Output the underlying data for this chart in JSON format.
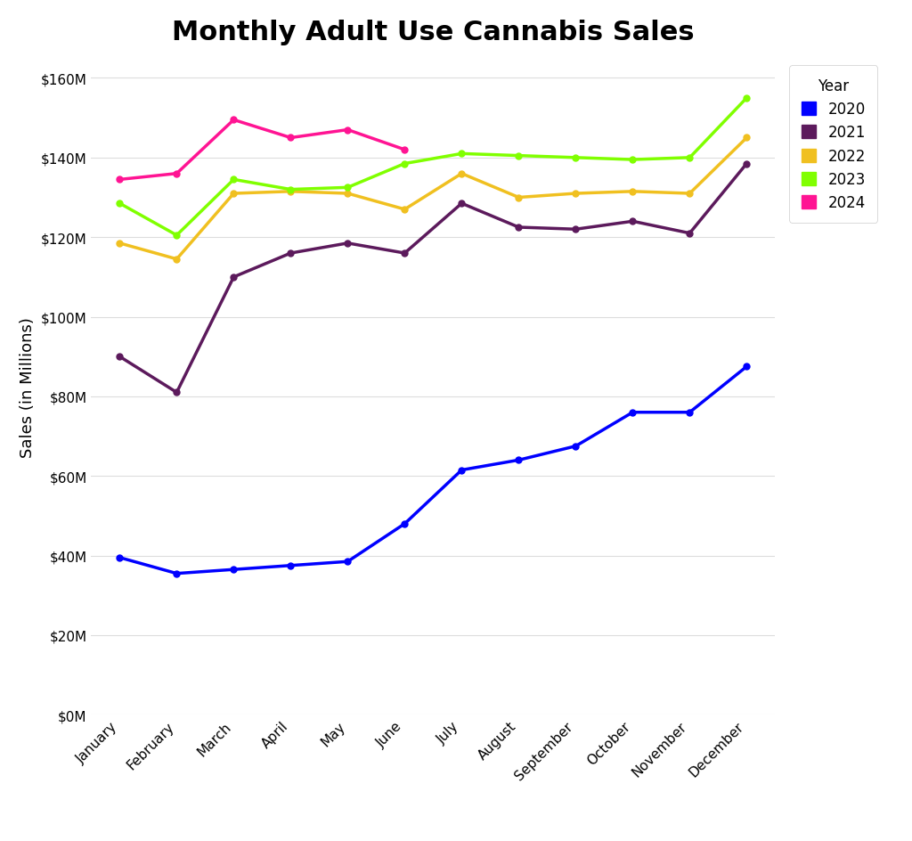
{
  "title": "Monthly Adult Use Cannabis Sales",
  "ylabel": "Sales (in Millions)",
  "months": [
    "January",
    "February",
    "March",
    "April",
    "May",
    "June",
    "July",
    "August",
    "September",
    "October",
    "November",
    "December"
  ],
  "series": {
    "2020": {
      "color": "#0000ff",
      "values": [
        39.5,
        35.5,
        36.5,
        37.5,
        38.5,
        48.0,
        61.5,
        64.0,
        67.5,
        76.0,
        76.0,
        87.5
      ]
    },
    "2021": {
      "color": "#5c1a5c",
      "values": [
        90.0,
        81.0,
        110.0,
        116.0,
        118.5,
        116.0,
        128.5,
        122.5,
        122.0,
        124.0,
        121.0,
        138.5
      ]
    },
    "2022": {
      "color": "#f0c020",
      "values": [
        118.5,
        114.5,
        131.0,
        131.5,
        131.0,
        127.0,
        136.0,
        130.0,
        131.0,
        131.5,
        131.0,
        145.0
      ]
    },
    "2023": {
      "color": "#80ff00",
      "values": [
        128.5,
        120.5,
        134.5,
        132.0,
        132.5,
        138.5,
        141.0,
        140.5,
        140.0,
        139.5,
        140.0,
        155.0
      ]
    },
    "2024": {
      "color": "#ff1493",
      "values": [
        134.5,
        136.0,
        149.5,
        145.0,
        147.0,
        142.0,
        null,
        null,
        null,
        null,
        null,
        null
      ]
    }
  },
  "ylim": [
    0,
    165
  ],
  "yticks": [
    0,
    20,
    40,
    60,
    80,
    100,
    120,
    140,
    160
  ],
  "ytick_labels": [
    "$0M",
    "$20M",
    "$40M",
    "$60M",
    "$80M",
    "$100M",
    "$120M",
    "$140M",
    "$160M"
  ],
  "background_color": "#ffffff",
  "grid_color": "#dddddd",
  "title_fontsize": 22,
  "axis_label_fontsize": 13,
  "tick_fontsize": 11,
  "legend_title": "Year",
  "line_width": 2.5,
  "marker_size": 5
}
